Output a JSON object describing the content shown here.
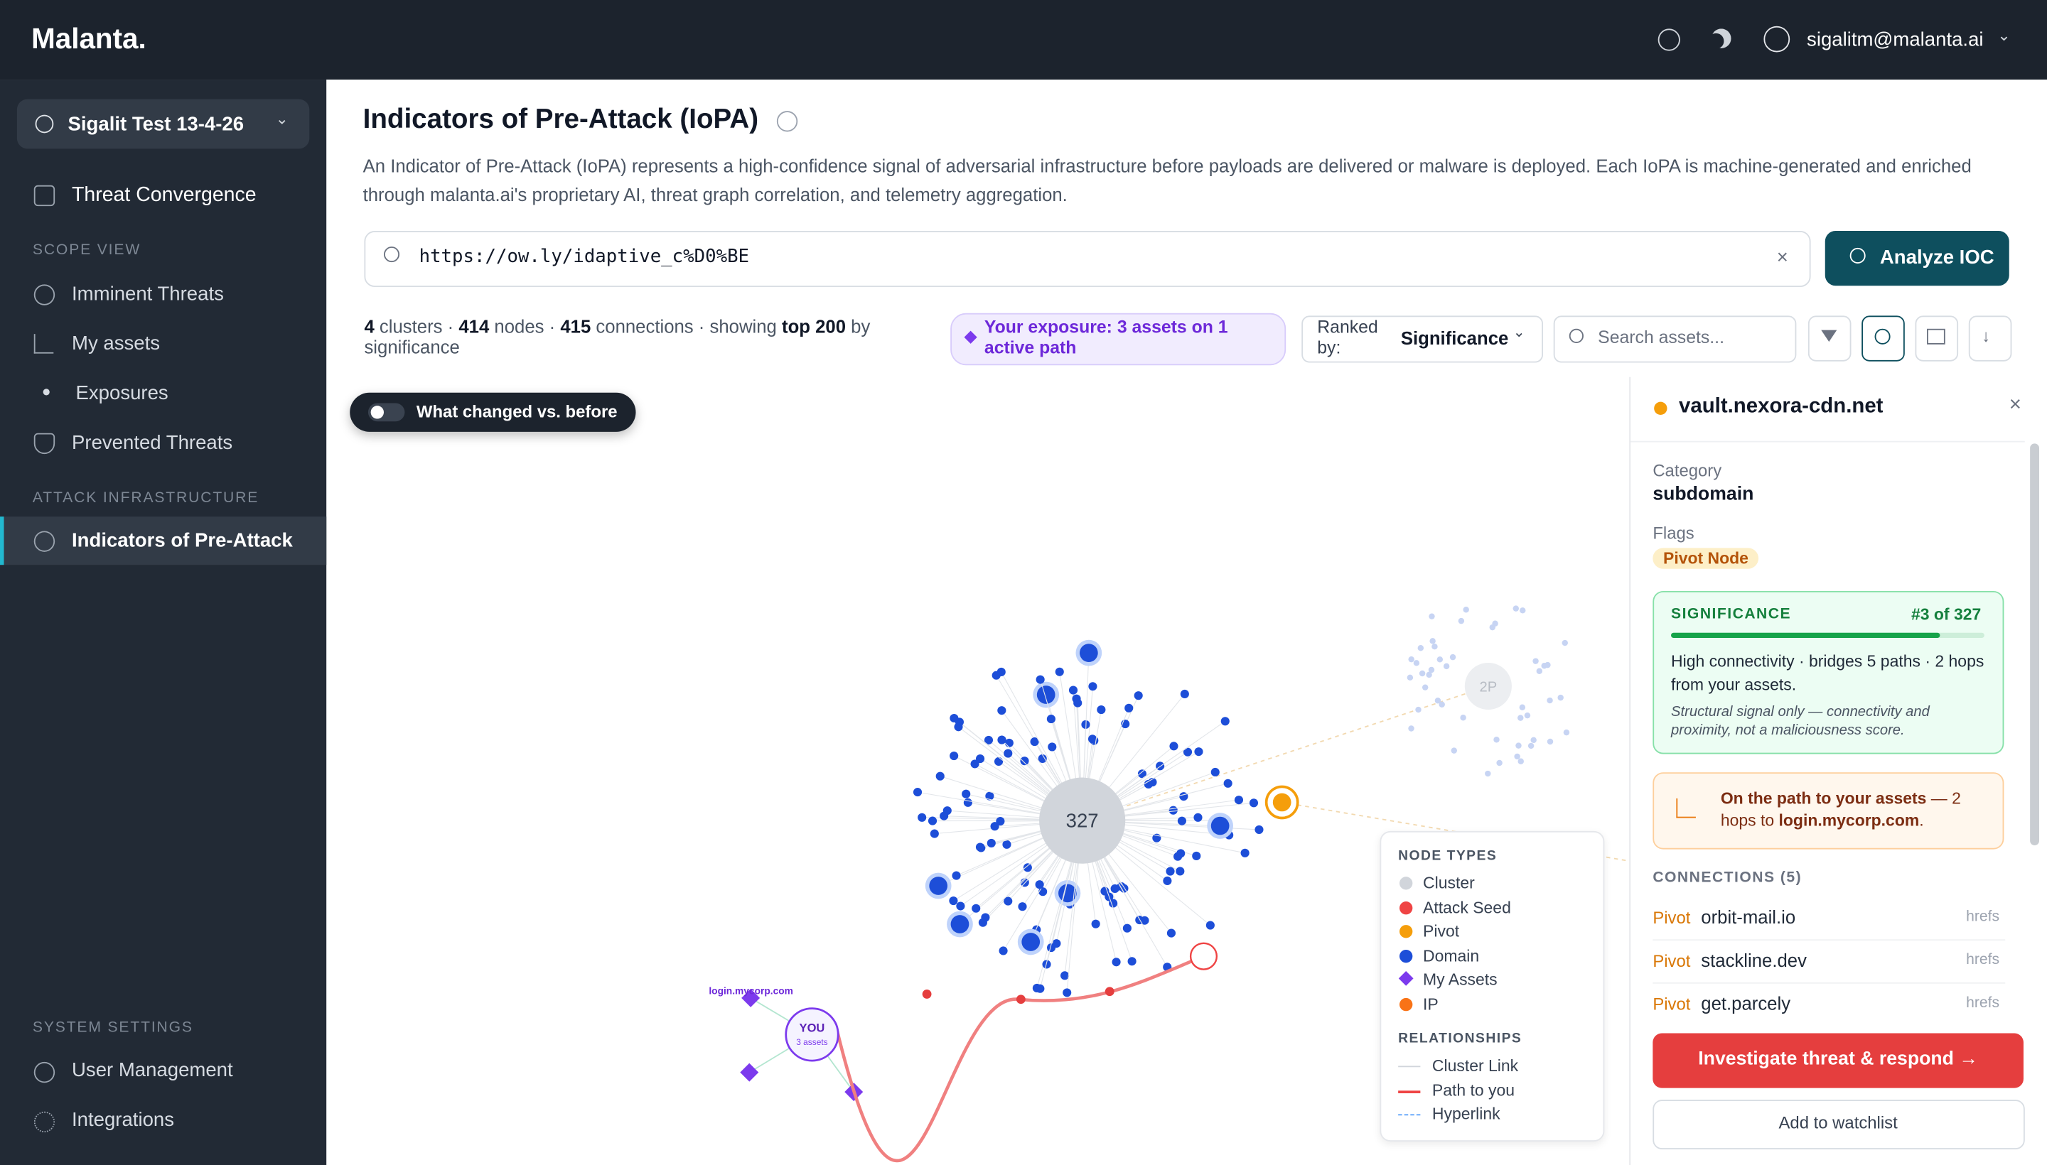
{
  "header": {
    "logo": "Malanta.",
    "user": "sigalitm@malanta.ai"
  },
  "sidebar": {
    "workspace": "Sigalit Test 13-4-26",
    "top_item": "Threat Convergence",
    "sections": [
      {
        "title": "SCOPE VIEW",
        "items": [
          "Imminent Threats",
          "My assets",
          "Exposures",
          "Prevented Threats"
        ]
      },
      {
        "title": "ATTACK INFRASTRUCTURE",
        "items": [
          "Indicators of Pre-Attack"
        ]
      },
      {
        "title": "SYSTEM SETTINGS",
        "items": [
          "User Management",
          "Integrations"
        ]
      }
    ]
  },
  "page": {
    "title": "Indicators of Pre-Attack (IoPA)",
    "description": "An Indicator of Pre-Attack (IoPA) represents a high-confidence signal of adversarial infrastructure before payloads are delivered or malware is deployed. Each IoPA is machine-generated and enriched through malanta.ai's proprietary AI, threat graph correlation, and telemetry aggregation.",
    "search_value": "https://ow.ly/idaptive_c%D0%BE",
    "analyze_button": "Analyze IOC"
  },
  "toolbar": {
    "stats": [
      {
        "text": "4",
        "bold": true
      },
      {
        "text": " clusters · ",
        "bold": false
      },
      {
        "text": "414",
        "bold": true
      },
      {
        "text": " nodes · ",
        "bold": false
      },
      {
        "text": "415",
        "bold": true
      },
      {
        "text": " connections · showing ",
        "bold": false
      },
      {
        "text": "top 200",
        "bold": true
      },
      {
        "text": " by significance",
        "bold": false
      }
    ],
    "exposure": "Your exposure: 3 assets on 1 active path",
    "ranked_label": "Ranked by:",
    "ranked_value": "Significance",
    "search_placeholder": "Search assets..."
  },
  "graph": {
    "toggle": "What changed vs. before",
    "main_cluster": "327",
    "second_cluster": "2P",
    "you_label": "YOU",
    "you_sub": "3 assets",
    "asset_label": "login.mycorp.com"
  },
  "legend": {
    "node_title": "NODE TYPES",
    "node_types": [
      {
        "label": "Cluster",
        "color": "#d1d5db"
      },
      {
        "label": "Attack Seed",
        "color": "#ef4444"
      },
      {
        "label": "Pivot",
        "color": "#f59e0b"
      },
      {
        "label": "Domain",
        "color": "#1d4ed8"
      },
      {
        "label": "My Assets",
        "color": "#7c3aed"
      },
      {
        "label": "IP",
        "color": "#f97316"
      }
    ],
    "rel_title": "RELATIONSHIPS",
    "relationships": [
      {
        "label": "Cluster Link",
        "color": "#d1d5db",
        "dash": false
      },
      {
        "label": "Path to you",
        "color": "#ef4444",
        "dash": false
      },
      {
        "label": "Hyperlink",
        "color": "#60a5fa",
        "dash": true
      }
    ]
  },
  "panel": {
    "title": "vault.nexora-cdn.net",
    "category_label": "Category",
    "category": "subdomain",
    "flags_label": "Flags",
    "flag": "Pivot Node",
    "significance": {
      "title": "SIGNIFICANCE",
      "rank": "#3 of 327",
      "text": "High connectivity · bridges 5 paths · 2 hops from your assets.",
      "note": "Structural signal only — connectivity and proximity, not a maliciousness score."
    },
    "path": [
      {
        "text": "On the path to your assets",
        "bold": true
      },
      {
        "text": " — 2 hops to ",
        "bold": false
      },
      {
        "text": "login.mycorp.com",
        "bold": true
      },
      {
        "text": ".",
        "bold": false
      }
    ],
    "connections_title": "CONNECTIONS (5)",
    "connections": [
      {
        "type": "Pivot",
        "name": "orbit-mail.io",
        "rel": "hrefs"
      },
      {
        "type": "Pivot",
        "name": "stackline.dev",
        "rel": "hrefs"
      },
      {
        "type": "Pivot",
        "name": "get.parcely",
        "rel": "hrefs"
      }
    ],
    "primary_button": "Investigate threat & respond",
    "secondary_button": "Add to watchlist"
  }
}
